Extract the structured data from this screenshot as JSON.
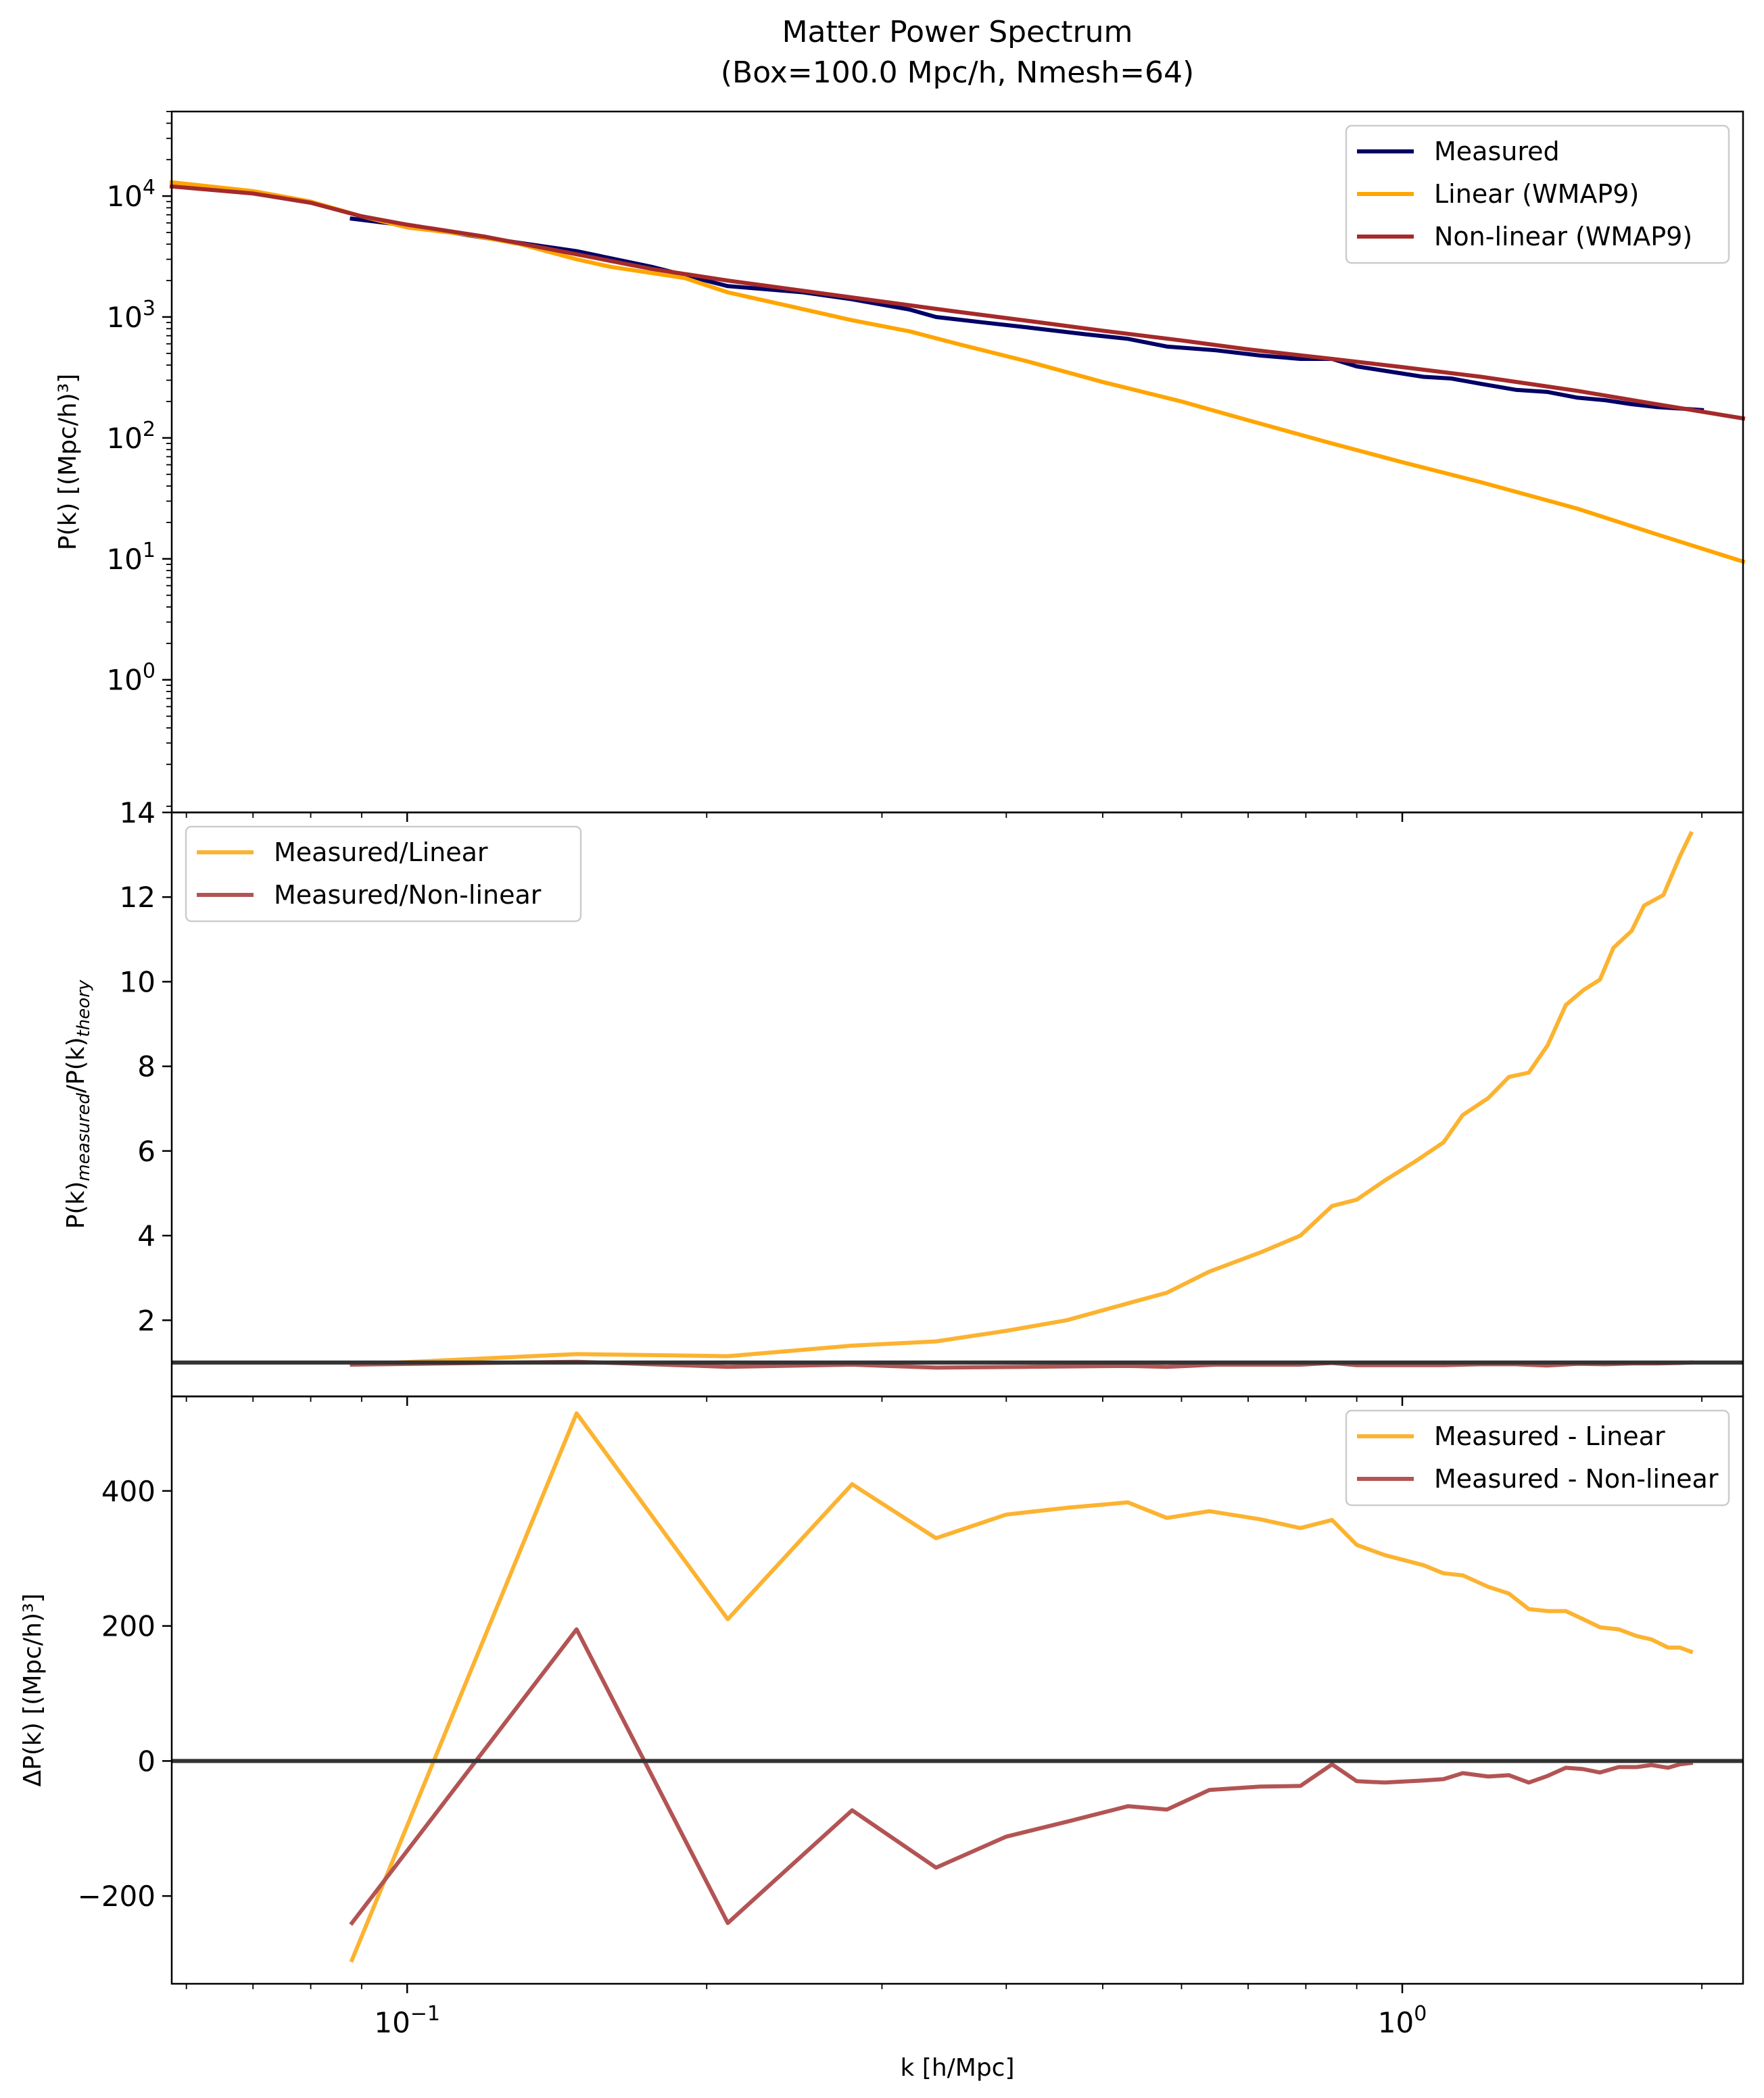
{
  "title_line1": "Matter Power Spectrum",
  "title_line2": "(Box=100.0 Mpc/h, Nmesh=64)",
  "colors": {
    "measured": "#000066",
    "linear": "#ffa500",
    "nonlinear": "#a52a2a",
    "ratio_linear": "#fcb331",
    "ratio_nonlinear": "#b35454",
    "reference_line": "#333333"
  },
  "chart_data": [
    {
      "type": "line",
      "panel": "top",
      "title": "",
      "xlabel": "",
      "ylabel": "P(k) [(Mpc/h)³]",
      "xscale": "log",
      "yscale": "log",
      "xlim": [
        0.058,
        2.2
      ],
      "ylim": [
        0.08,
        50000
      ],
      "y_ticks": [
        {
          "value": 1,
          "base": "10",
          "exp": "0"
        },
        {
          "value": 10,
          "base": "10",
          "exp": "1"
        },
        {
          "value": 100,
          "base": "10",
          "exp": "2"
        },
        {
          "value": 1000,
          "base": "10",
          "exp": "3"
        },
        {
          "value": 10000,
          "base": "10",
          "exp": "4"
        }
      ],
      "legend_position": "upper right",
      "grid": false,
      "series": [
        {
          "name": "Measured",
          "color": "#000066",
          "x": [
            0.088,
            0.1,
            0.12,
            0.148,
            0.176,
            0.21,
            0.25,
            0.28,
            0.32,
            0.34,
            0.38,
            0.42,
            0.48,
            0.53,
            0.58,
            0.65,
            0.72,
            0.79,
            0.85,
            0.9,
            0.98,
            1.05,
            1.12,
            1.2,
            1.3,
            1.4,
            1.5,
            1.6,
            1.7,
            1.8,
            1.9,
            2.0
          ],
          "y": [
            6500,
            5700,
            4500,
            3500,
            2600,
            1800,
            1600,
            1400,
            1150,
            1000,
            900,
            820,
            720,
            660,
            570,
            530,
            480,
            450,
            450,
            390,
            350,
            320,
            310,
            280,
            250,
            240,
            215,
            205,
            190,
            180,
            175,
            170
          ]
        },
        {
          "name": "Linear (WMAP9)",
          "color": "#ffa500",
          "x": [
            0.058,
            0.07,
            0.08,
            0.09,
            0.1,
            0.115,
            0.13,
            0.148,
            0.16,
            0.19,
            0.21,
            0.24,
            0.28,
            0.32,
            0.36,
            0.42,
            0.5,
            0.6,
            0.7,
            0.85,
            1.0,
            1.2,
            1.5,
            1.8,
            2.2
          ],
          "y": [
            13000,
            11000,
            9000,
            6800,
            5500,
            4800,
            4000,
            3000,
            2600,
            2100,
            1600,
            1250,
            940,
            760,
            590,
            430,
            290,
            200,
            140,
            90,
            63,
            43,
            26,
            16,
            9.5
          ]
        },
        {
          "name": "Non-linear (WMAP9)",
          "color": "#a52a2a",
          "x": [
            0.058,
            0.07,
            0.08,
            0.09,
            0.1,
            0.12,
            0.148,
            0.176,
            0.21,
            0.28,
            0.35,
            0.42,
            0.5,
            0.6,
            0.7,
            0.85,
            1.0,
            1.2,
            1.5,
            1.8,
            2.2
          ],
          "y": [
            12000,
            10500,
            8800,
            6800,
            5800,
            4600,
            3300,
            2500,
            2000,
            1450,
            1130,
            930,
            770,
            640,
            540,
            450,
            385,
            320,
            245,
            190,
            145
          ]
        }
      ]
    },
    {
      "type": "line",
      "panel": "middle",
      "title": "",
      "xlabel": "",
      "ylabel_main": "P(k)",
      "ylabel_sub1": "measured",
      "ylabel_mid": "/P(k)",
      "ylabel_sub2": "theory",
      "xscale": "log",
      "xlim": [
        0.058,
        2.2
      ],
      "ylim": [
        0.2,
        14
      ],
      "y_ticks": [
        2,
        4,
        6,
        8,
        10,
        12,
        14
      ],
      "reference_line": 1,
      "legend_position": "upper left",
      "grid": false,
      "series": [
        {
          "name": "Measured/Linear",
          "color": "#fcb331",
          "x": [
            0.088,
            0.148,
            0.21,
            0.28,
            0.34,
            0.4,
            0.46,
            0.53,
            0.58,
            0.64,
            0.72,
            0.79,
            0.85,
            0.9,
            0.96,
            1.03,
            1.1,
            1.15,
            1.22,
            1.28,
            1.34,
            1.4,
            1.46,
            1.52,
            1.58,
            1.63,
            1.7,
            1.75,
            1.83,
            1.9,
            1.95
          ],
          "y": [
            0.95,
            1.2,
            1.15,
            1.4,
            1.5,
            1.75,
            2.0,
            2.4,
            2.65,
            3.15,
            3.6,
            4.0,
            4.7,
            4.85,
            5.3,
            5.75,
            6.2,
            6.85,
            7.25,
            7.75,
            7.85,
            8.5,
            9.45,
            9.8,
            10.05,
            10.8,
            11.2,
            11.8,
            12.05,
            12.95,
            13.5
          ]
        },
        {
          "name": "Measured/Non-linear",
          "color": "#b35454",
          "x": [
            0.088,
            0.148,
            0.21,
            0.28,
            0.34,
            0.42,
            0.53,
            0.58,
            0.65,
            0.79,
            0.85,
            0.9,
            1.0,
            1.1,
            1.2,
            1.3,
            1.4,
            1.5,
            1.6,
            1.7,
            1.8,
            1.9,
            1.95
          ],
          "y": [
            0.95,
            1.02,
            0.9,
            0.95,
            0.88,
            0.9,
            0.92,
            0.9,
            0.95,
            0.95,
            0.99,
            0.94,
            0.94,
            0.94,
            0.96,
            0.96,
            0.93,
            0.97,
            0.96,
            0.98,
            0.98,
            0.99,
            1.0
          ]
        }
      ]
    },
    {
      "type": "line",
      "panel": "bottom",
      "title": "",
      "xlabel": "k [h/Mpc]",
      "ylabel": "ΔP(k) [(Mpc/h)³]",
      "xscale": "log",
      "xlim": [
        0.058,
        2.2
      ],
      "ylim": [
        -330,
        540
      ],
      "y_ticks": [
        {
          "value": -200,
          "label": "−200"
        },
        {
          "value": 0,
          "label": "0"
        },
        {
          "value": 200,
          "label": "200"
        },
        {
          "value": 400,
          "label": "400"
        }
      ],
      "x_ticks": [
        {
          "value": 0.1,
          "base": "10",
          "exp": "−1"
        },
        {
          "value": 1,
          "base": "10",
          "exp": "0"
        }
      ],
      "reference_line": 0,
      "legend_position": "upper right",
      "grid": false,
      "series": [
        {
          "name": "Measured - Linear",
          "color": "#fcb331",
          "x": [
            0.088,
            0.148,
            0.21,
            0.28,
            0.34,
            0.4,
            0.46,
            0.53,
            0.58,
            0.64,
            0.72,
            0.79,
            0.85,
            0.9,
            0.96,
            1.05,
            1.1,
            1.15,
            1.22,
            1.28,
            1.34,
            1.4,
            1.46,
            1.52,
            1.58,
            1.65,
            1.72,
            1.78,
            1.85,
            1.9,
            1.95
          ],
          "y": [
            -295,
            515,
            210,
            410,
            330,
            365,
            375,
            383,
            360,
            370,
            358,
            345,
            357,
            320,
            305,
            290,
            278,
            275,
            258,
            248,
            225,
            222,
            222,
            210,
            198,
            195,
            185,
            180,
            168,
            168,
            162
          ]
        },
        {
          "name": "Measured - Non-linear",
          "color": "#b35454",
          "x": [
            0.088,
            0.148,
            0.21,
            0.28,
            0.34,
            0.4,
            0.46,
            0.53,
            0.58,
            0.64,
            0.72,
            0.79,
            0.85,
            0.9,
            0.96,
            1.05,
            1.1,
            1.15,
            1.22,
            1.28,
            1.34,
            1.4,
            1.46,
            1.52,
            1.58,
            1.65,
            1.72,
            1.78,
            1.85,
            1.9,
            1.95
          ],
          "y": [
            -240,
            195,
            -240,
            -73,
            -158,
            -112,
            -90,
            -67,
            -72,
            -43,
            -38,
            -37,
            -5,
            -30,
            -32,
            -29,
            -27,
            -18,
            -23,
            -21,
            -32,
            -22,
            -10,
            -12,
            -17,
            -9,
            -9,
            -6,
            -10,
            -5,
            -3
          ]
        }
      ]
    }
  ]
}
